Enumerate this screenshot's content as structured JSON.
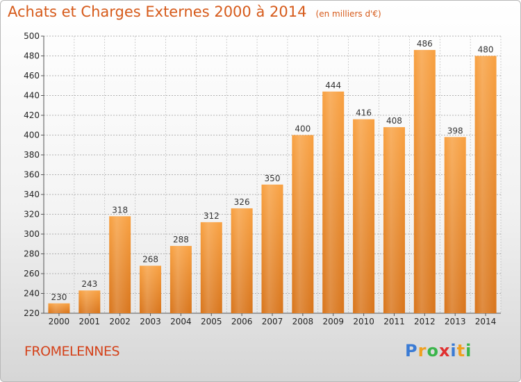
{
  "header": {
    "title": "Achats et Charges Externes 2000 à 2014",
    "subtitle": "(en milliers d'€)"
  },
  "footer": {
    "commune": "FROMELENNES",
    "brand_letters": [
      "P",
      "r",
      "o",
      "x",
      "i",
      "t",
      "i"
    ]
  },
  "chart_data": {
    "type": "bar",
    "title": "Achats et Charges Externes 2000 à 2014",
    "subtitle": "(en milliers d'€)",
    "categories": [
      "2000",
      "2001",
      "2002",
      "2003",
      "2004",
      "2005",
      "2006",
      "2007",
      "2008",
      "2009",
      "2010",
      "2011",
      "2012",
      "2013",
      "2014"
    ],
    "values": [
      230,
      243,
      318,
      268,
      288,
      312,
      326,
      350,
      400,
      444,
      416,
      408,
      486,
      398,
      480
    ],
    "xlabel": "",
    "ylabel": "",
    "ylim": [
      220,
      500
    ],
    "yticks": [
      220,
      240,
      260,
      280,
      300,
      320,
      340,
      360,
      380,
      400,
      420,
      440,
      460,
      480,
      500
    ],
    "grid": true,
    "bar_color": "#f08a28"
  }
}
